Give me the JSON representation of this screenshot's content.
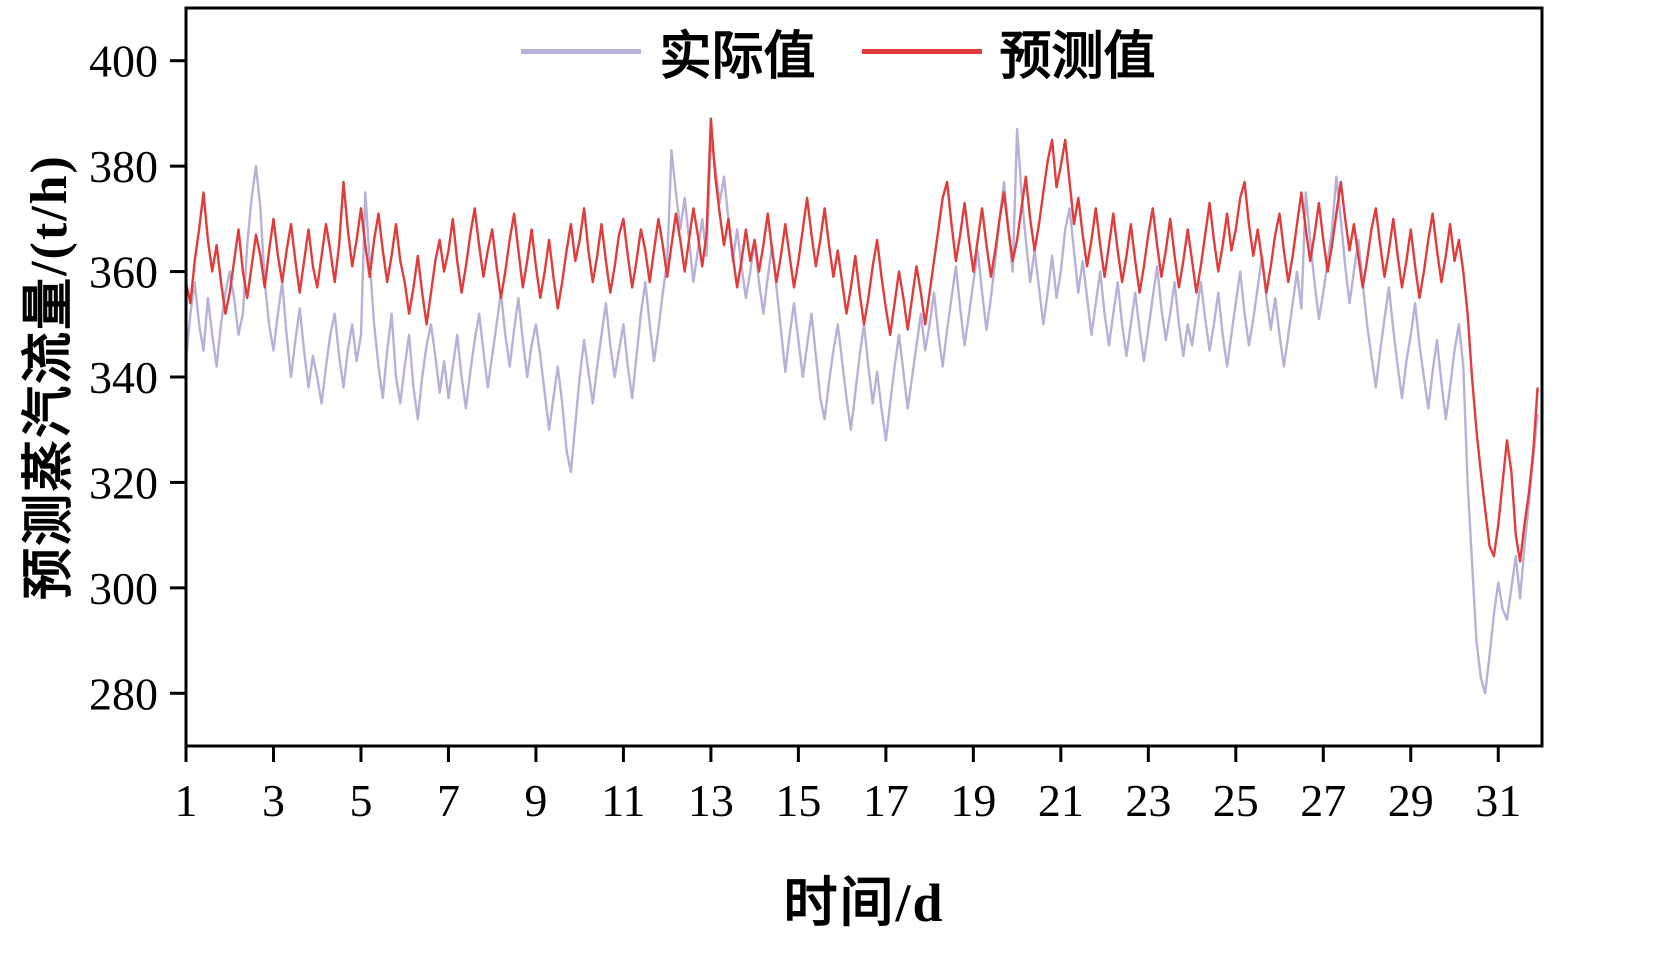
{
  "chart_data": {
    "type": "line",
    "title": "",
    "xlabel": "时间/d",
    "ylabel": "预测蒸汽流量/(t/h)",
    "xlim": [
      1,
      32
    ],
    "ylim": [
      270,
      410
    ],
    "xticks": [
      1,
      3,
      5,
      7,
      9,
      11,
      13,
      15,
      17,
      19,
      21,
      23,
      25,
      27,
      29,
      31
    ],
    "yticks": [
      280,
      300,
      320,
      340,
      360,
      380,
      400
    ],
    "grid": false,
    "legend_position": "top-center",
    "x_start": 1.0,
    "x_step": 0.1,
    "series": [
      {
        "name": "实际值",
        "color": "#b7b1d8",
        "values": [
          343,
          352,
          358,
          350,
          345,
          355,
          348,
          342,
          350,
          356,
          360,
          355,
          348,
          352,
          365,
          374,
          380,
          372,
          358,
          350,
          345,
          352,
          358,
          348,
          340,
          347,
          353,
          345,
          338,
          344,
          340,
          335,
          342,
          348,
          352,
          344,
          338,
          345,
          350,
          343,
          348,
          375,
          362,
          350,
          342,
          336,
          345,
          352,
          340,
          335,
          342,
          348,
          338,
          332,
          340,
          346,
          350,
          344,
          337,
          343,
          336,
          342,
          348,
          340,
          334,
          341,
          347,
          352,
          345,
          338,
          344,
          350,
          356,
          348,
          342,
          349,
          355,
          347,
          340,
          346,
          350,
          344,
          337,
          330,
          336,
          342,
          335,
          326,
          322,
          331,
          340,
          347,
          341,
          335,
          342,
          348,
          354,
          346,
          340,
          345,
          350,
          342,
          336,
          344,
          352,
          358,
          350,
          343,
          349,
          356,
          362,
          383,
          375,
          368,
          374,
          366,
          358,
          364,
          370,
          363,
          385,
          380,
          373,
          378,
          370,
          362,
          368,
          361,
          355,
          360,
          366,
          358,
          352,
          359,
          365,
          357,
          349,
          341,
          348,
          354,
          347,
          340,
          346,
          352,
          344,
          336,
          332,
          339,
          345,
          350,
          343,
          336,
          330,
          337,
          344,
          350,
          342,
          335,
          341,
          334,
          328,
          335,
          342,
          348,
          341,
          334,
          340,
          346,
          352,
          345,
          350,
          356,
          348,
          342,
          349,
          355,
          361,
          353,
          346,
          352,
          358,
          364,
          356,
          349,
          355,
          362,
          370,
          377,
          368,
          360,
          387,
          375,
          366,
          358,
          364,
          357,
          350,
          356,
          363,
          355,
          360,
          368,
          372,
          364,
          356,
          362,
          355,
          348,
          354,
          360,
          352,
          346,
          352,
          358,
          350,
          344,
          350,
          356,
          349,
          343,
          349,
          355,
          361,
          353,
          347,
          352,
          358,
          350,
          344,
          350,
          346,
          352,
          358,
          351,
          345,
          350,
          356,
          348,
          342,
          348,
          354,
          360,
          352,
          346,
          351,
          357,
          363,
          355,
          349,
          355,
          348,
          342,
          348,
          354,
          360,
          353,
          375,
          366,
          358,
          351,
          356,
          362,
          368,
          378,
          370,
          361,
          354,
          360,
          366,
          358,
          350,
          344,
          338,
          345,
          351,
          357,
          349,
          342,
          336,
          343,
          348,
          354,
          346,
          340,
          334,
          341,
          347,
          339,
          332,
          338,
          345,
          350,
          342,
          320,
          305,
          290,
          283,
          280,
          287,
          295,
          301,
          296,
          294,
          300,
          306,
          298,
          308,
          316,
          325,
          333
        ]
      },
      {
        "name": "预测值",
        "color": "#e03c3c",
        "values": [
          358,
          354,
          362,
          368,
          375,
          366,
          360,
          365,
          358,
          352,
          356,
          362,
          368,
          360,
          355,
          361,
          367,
          363,
          357,
          364,
          370,
          363,
          358,
          364,
          369,
          362,
          356,
          362,
          368,
          361,
          357,
          363,
          369,
          364,
          358,
          365,
          377,
          368,
          361,
          366,
          372,
          365,
          359,
          366,
          371,
          364,
          358,
          363,
          369,
          362,
          358,
          352,
          357,
          363,
          356,
          350,
          356,
          362,
          366,
          360,
          364,
          370,
          362,
          356,
          361,
          367,
          372,
          365,
          359,
          364,
          368,
          361,
          355,
          360,
          366,
          371,
          364,
          357,
          362,
          368,
          361,
          355,
          360,
          366,
          359,
          353,
          358,
          364,
          369,
          362,
          366,
          372,
          364,
          358,
          363,
          369,
          362,
          356,
          361,
          367,
          370,
          363,
          357,
          362,
          368,
          364,
          358,
          364,
          370,
          365,
          359,
          365,
          371,
          366,
          360,
          366,
          372,
          367,
          361,
          367,
          389,
          378,
          371,
          365,
          370,
          363,
          357,
          362,
          368,
          362,
          366,
          360,
          365,
          371,
          364,
          358,
          363,
          369,
          363,
          357,
          362,
          368,
          374,
          367,
          361,
          366,
          372,
          365,
          359,
          364,
          358,
          352,
          357,
          363,
          356,
          350,
          355,
          361,
          366,
          359,
          353,
          348,
          354,
          360,
          355,
          349,
          355,
          361,
          356,
          350,
          356,
          362,
          368,
          374,
          377,
          369,
          362,
          367,
          373,
          366,
          360,
          366,
          372,
          365,
          359,
          364,
          370,
          375,
          368,
          362,
          366,
          372,
          378,
          370,
          364,
          369,
          375,
          381,
          385,
          376,
          380,
          385,
          377,
          369,
          374,
          367,
          361,
          366,
          372,
          365,
          359,
          365,
          371,
          364,
          358,
          363,
          369,
          362,
          356,
          361,
          367,
          372,
          365,
          359,
          364,
          370,
          363,
          357,
          362,
          368,
          362,
          356,
          361,
          367,
          373,
          366,
          360,
          365,
          371,
          364,
          368,
          374,
          377,
          369,
          363,
          368,
          362,
          356,
          361,
          367,
          371,
          364,
          358,
          363,
          369,
          375,
          368,
          362,
          367,
          373,
          366,
          360,
          365,
          371,
          377,
          370,
          364,
          369,
          363,
          357,
          362,
          368,
          372,
          365,
          359,
          364,
          370,
          363,
          357,
          362,
          368,
          361,
          355,
          360,
          366,
          371,
          364,
          358,
          363,
          369,
          362,
          366,
          360,
          352,
          340,
          330,
          322,
          315,
          308,
          306,
          312,
          320,
          328,
          322,
          310,
          305,
          312,
          318,
          326,
          338
        ]
      }
    ]
  }
}
